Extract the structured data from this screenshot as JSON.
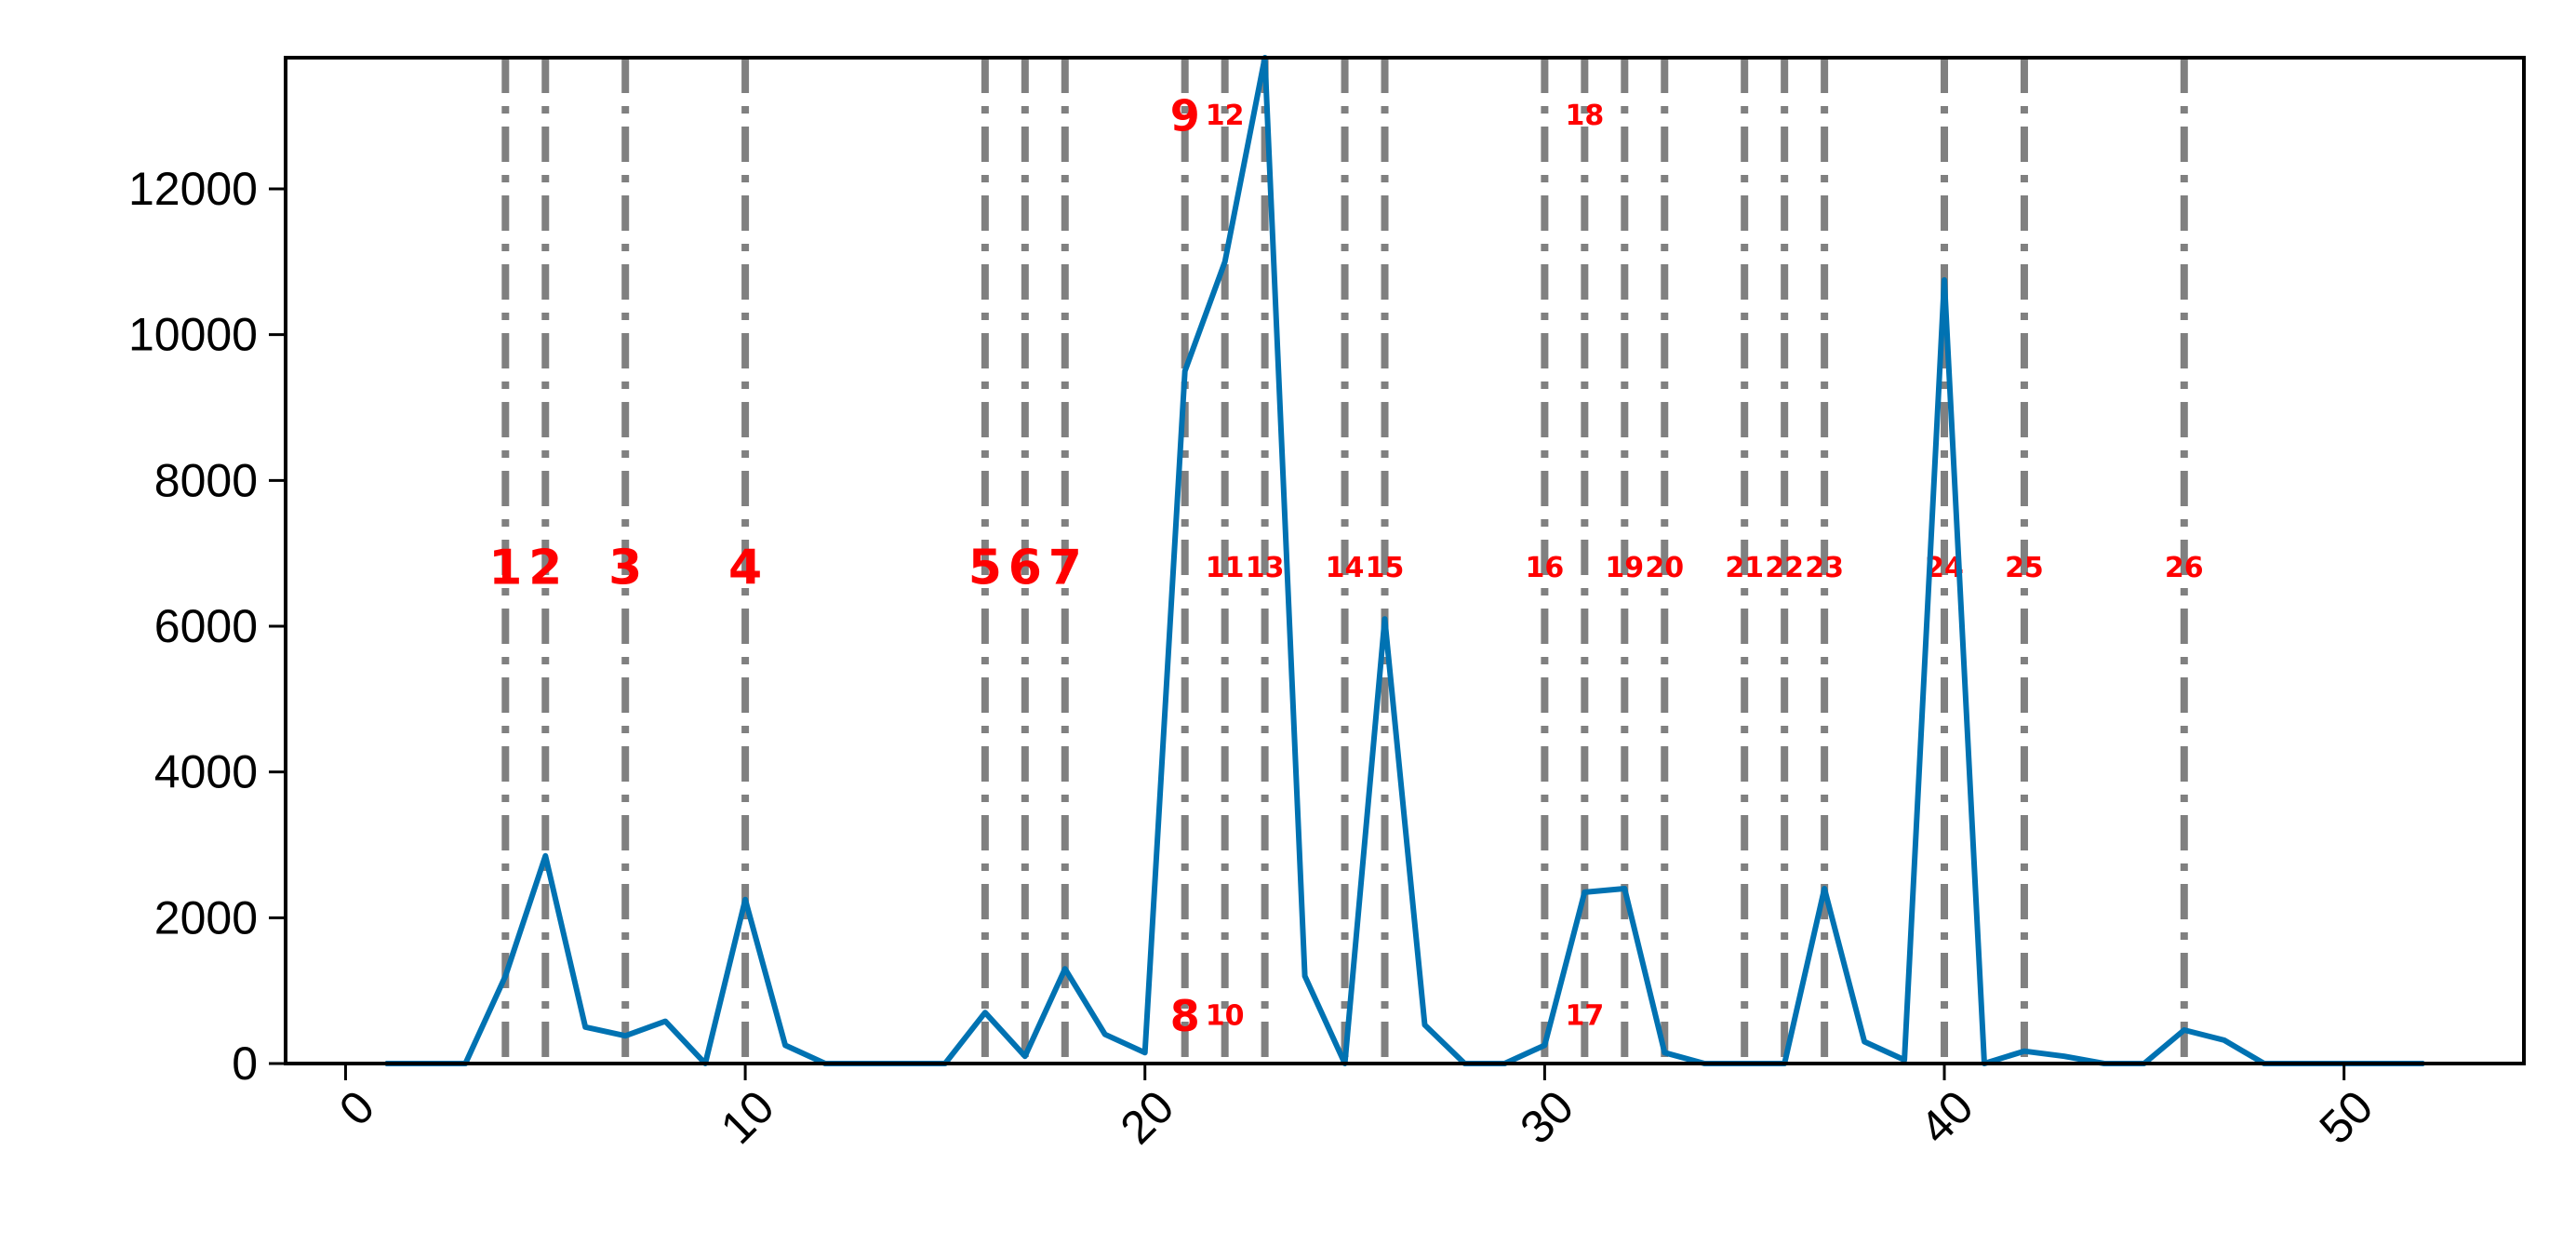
{
  "chart_data": {
    "type": "line",
    "title": "",
    "xlabel": "",
    "ylabel": "",
    "xlim": [
      -1.5,
      54.5
    ],
    "ylim": [
      0,
      13800
    ],
    "grid": false,
    "legend": "none",
    "line_color": "#0072b2",
    "vline_color": "#808080",
    "annotation_color": "#ff0000",
    "xticks": [
      0,
      10,
      20,
      30,
      40,
      50
    ],
    "xtick_labels": [
      "0",
      "10",
      "20",
      "30",
      "40",
      "50"
    ],
    "yticks": [
      0,
      2000,
      4000,
      6000,
      8000,
      10000,
      12000
    ],
    "ytick_labels": [
      "0",
      "2000",
      "4000",
      "6000",
      "8000",
      "10000",
      "12000"
    ],
    "series": [
      {
        "x": [
          1,
          2,
          3,
          4,
          5,
          6,
          7,
          8,
          9,
          10,
          11,
          12,
          13,
          14,
          15,
          16,
          17,
          18,
          19,
          20,
          21,
          22,
          23,
          24,
          25,
          26,
          27,
          28,
          29,
          30,
          31,
          32,
          33,
          34,
          35,
          36,
          37,
          38,
          39,
          40,
          41,
          42,
          43,
          44,
          45,
          46,
          47,
          48,
          49,
          50,
          51,
          52
        ],
        "values": [
          0,
          0,
          0,
          1200,
          2850,
          500,
          380,
          580,
          0,
          2250,
          250,
          0,
          0,
          0,
          0,
          700,
          100,
          1300,
          400,
          150,
          9500,
          11000,
          13800,
          1200,
          0,
          6100,
          530,
          0,
          0,
          250,
          2350,
          2400,
          150,
          0,
          0,
          0,
          2400,
          300,
          50,
          10750,
          0,
          170,
          100,
          0,
          0,
          460,
          320,
          0,
          0,
          0,
          0,
          0
        ]
      }
    ],
    "vlines": [
      4,
      5,
      7,
      10,
      16,
      17,
      18,
      21,
      22,
      23,
      25,
      26,
      30,
      31,
      32,
      33,
      35,
      36,
      37,
      40,
      42,
      46
    ],
    "annotations": [
      {
        "label": "1",
        "x": 4,
        "y": 6800,
        "size": 52
      },
      {
        "label": "2",
        "x": 5,
        "y": 6800,
        "size": 52
      },
      {
        "label": "3",
        "x": 7,
        "y": 6800,
        "size": 52
      },
      {
        "label": "4",
        "x": 10,
        "y": 6800,
        "size": 52
      },
      {
        "label": "5",
        "x": 16,
        "y": 6800,
        "size": 52
      },
      {
        "label": "6",
        "x": 17,
        "y": 6800,
        "size": 52
      },
      {
        "label": "7",
        "x": 18,
        "y": 6800,
        "size": 52
      },
      {
        "label": "8",
        "x": 21,
        "y": 650,
        "size": 46
      },
      {
        "label": "9",
        "x": 21,
        "y": 13000,
        "size": 46
      },
      {
        "label": "10",
        "x": 22,
        "y": 650,
        "size": 30
      },
      {
        "label": "11",
        "x": 22,
        "y": 6800,
        "size": 30
      },
      {
        "label": "12",
        "x": 22,
        "y": 13000,
        "size": 30
      },
      {
        "label": "13",
        "x": 23,
        "y": 6800,
        "size": 30
      },
      {
        "label": "14",
        "x": 25,
        "y": 6800,
        "size": 30
      },
      {
        "label": "15",
        "x": 26,
        "y": 6800,
        "size": 30
      },
      {
        "label": "16",
        "x": 30,
        "y": 6800,
        "size": 30
      },
      {
        "label": "17",
        "x": 31,
        "y": 650,
        "size": 30
      },
      {
        "label": "18",
        "x": 31,
        "y": 13000,
        "size": 30
      },
      {
        "label": "19",
        "x": 32,
        "y": 6800,
        "size": 30
      },
      {
        "label": "20",
        "x": 33,
        "y": 6800,
        "size": 30
      },
      {
        "label": "21",
        "x": 35,
        "y": 6800,
        "size": 30
      },
      {
        "label": "22",
        "x": 36,
        "y": 6800,
        "size": 30
      },
      {
        "label": "23",
        "x": 37,
        "y": 6800,
        "size": 30
      },
      {
        "label": "24",
        "x": 40,
        "y": 6800,
        "size": 30
      },
      {
        "label": "25",
        "x": 42,
        "y": 6800,
        "size": 30
      },
      {
        "label": "26",
        "x": 46,
        "y": 6800,
        "size": 30
      }
    ]
  }
}
